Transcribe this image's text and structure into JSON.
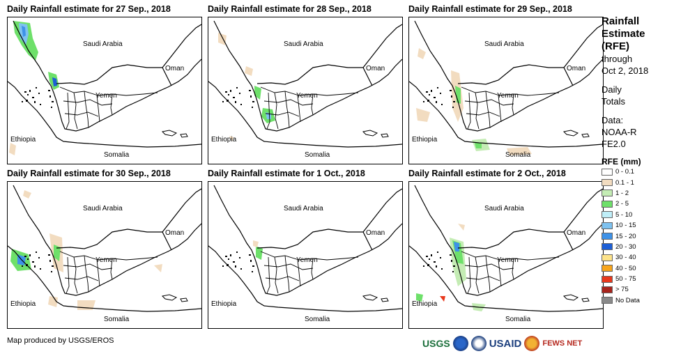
{
  "panels": [
    {
      "title": "Daily Rainfall estimate for 27 Sep., 2018"
    },
    {
      "title": "Daily Rainfall estimate for 28 Sep., 2018"
    },
    {
      "title": "Daily Rainfall estimate for 29 Sep., 2018"
    },
    {
      "title": "Daily Rainfall estimate for 30 Sep., 2018"
    },
    {
      "title": "Daily Rainfall estimate for 1 Oct., 2018"
    },
    {
      "title": "Daily Rainfall estimate for 2 Oct., 2018"
    }
  ],
  "map_labels": {
    "saudi": "Saudi Arabia",
    "oman": "Oman",
    "yemen": "Yemen",
    "ethiopia": "Ethiopia",
    "somalia": "Somalia"
  },
  "legend": {
    "title": "Rainfall Estimate (RFE)",
    "through": "through",
    "date": "Oct 2, 2018",
    "daily": "Daily Totals",
    "data_label": "Data:",
    "data_source": "NOAA-RFE2.0",
    "rfe_title": "RFE (mm)",
    "classes": [
      {
        "label": "0 - 0.1",
        "color": "#ffffff"
      },
      {
        "label": "0.1 - 1",
        "color": "#f2dcc0"
      },
      {
        "label": "1 - 2",
        "color": "#c4ecb4"
      },
      {
        "label": "2 - 5",
        "color": "#6ee06a"
      },
      {
        "label": "5 - 10",
        "color": "#bfeef8"
      },
      {
        "label": "10 - 15",
        "color": "#7ec2f0"
      },
      {
        "label": "15 - 20",
        "color": "#3e92e8"
      },
      {
        "label": "20 - 30",
        "color": "#1d5fd6"
      },
      {
        "label": "30 - 40",
        "color": "#fde38a"
      },
      {
        "label": "40 - 50",
        "color": "#f7a51c"
      },
      {
        "label": "50 - 75",
        "color": "#e8381c"
      },
      {
        "label": "> 75",
        "color": "#a8231b"
      },
      {
        "label": "No Data",
        "color": "#8a8a8a"
      }
    ]
  },
  "credit": "Map produced by USGS/EROS",
  "logos": {
    "usgs": "USGS",
    "usaid": "USAID",
    "fews": "FEWS NET"
  }
}
